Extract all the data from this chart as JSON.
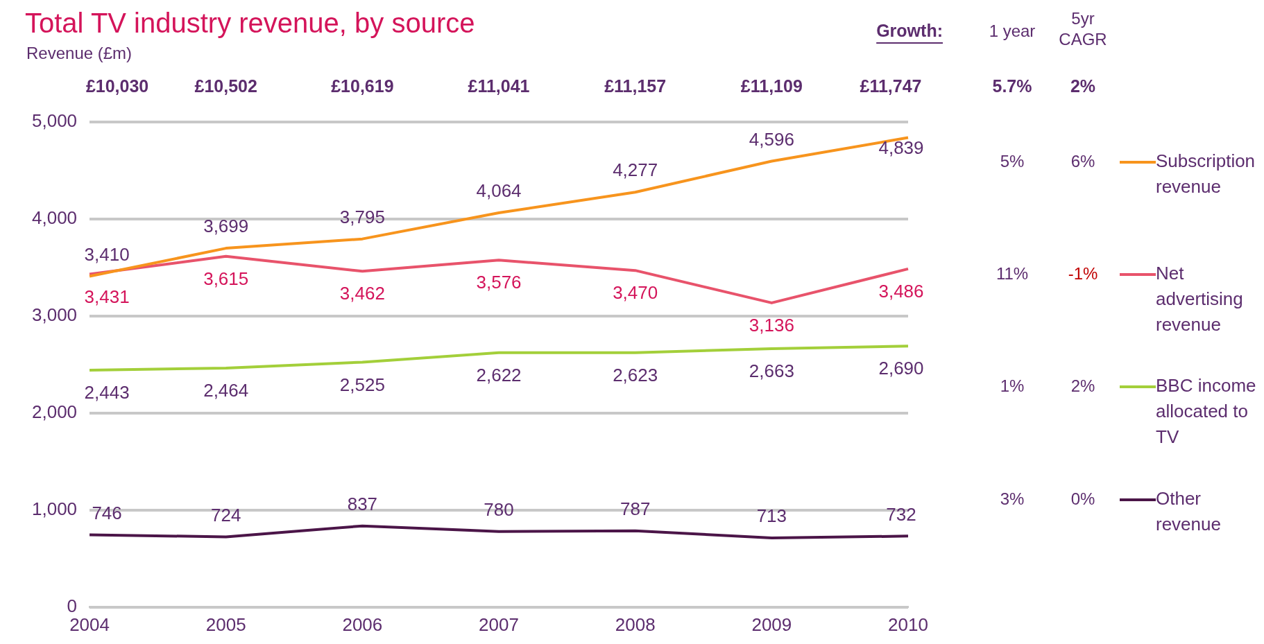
{
  "chart_data": {
    "type": "line",
    "title": "Total TV industry revenue, by source",
    "ylabel": "Revenue (£m)",
    "categories": [
      "2004",
      "2005",
      "2006",
      "2007",
      "2008",
      "2009",
      "2010"
    ],
    "series": [
      {
        "name": "Subscription revenue",
        "color": "#f7941d",
        "values": [
          3410,
          3699,
          3795,
          4064,
          4277,
          4596,
          4839
        ],
        "value_labels": [
          "3,410",
          "3,699",
          "3,795",
          "4,064",
          "4,277",
          "4,596",
          "4,839"
        ]
      },
      {
        "name": "Net advertising revenue",
        "color": "#e8536b",
        "values": [
          3431,
          3615,
          3462,
          3576,
          3470,
          3136,
          3486
        ],
        "value_labels": [
          "3,431",
          "3,615",
          "3,462",
          "3,576",
          "3,470",
          "3,136",
          "3,486"
        ]
      },
      {
        "name": "BBC income allocated to TV",
        "color": "#a3cf3a",
        "values": [
          2443,
          2464,
          2525,
          2622,
          2623,
          2663,
          2690
        ],
        "value_labels": [
          "2,443",
          "2,464",
          "2,525",
          "2,622",
          "2,623",
          "2,663",
          "2,690"
        ]
      },
      {
        "name": "Other revenue",
        "color": "#4b1548",
        "values": [
          746,
          724,
          837,
          780,
          787,
          713,
          732
        ],
        "value_labels": [
          "746",
          "724",
          "837",
          "780",
          "787",
          "713",
          "732"
        ]
      }
    ],
    "totals": [
      "£10,030",
      "£10,502",
      "£10,619",
      "£11,041",
      "£11,157",
      "£11,109",
      "£11,747"
    ],
    "annotations": [
      "Growth:",
      "1 year",
      "5yr CAGR",
      "5.7%",
      "2%",
      "5%",
      "6%",
      "11%",
      "-1%",
      "1%",
      "2%",
      "3%",
      "0%"
    ],
    "ylim": [
      0,
      5000
    ],
    "yticks": [
      {
        "value": 0,
        "label": "0"
      },
      {
        "value": 1000,
        "label": "1,000"
      },
      {
        "value": 2000,
        "label": "2,000"
      },
      {
        "value": 3000,
        "label": "3,000"
      },
      {
        "value": 4000,
        "label": "4,000"
      },
      {
        "value": 5000,
        "label": "5,000"
      }
    ],
    "grid": "y",
    "legend": "right",
    "marker": "none",
    "line_style": "solid"
  }
}
